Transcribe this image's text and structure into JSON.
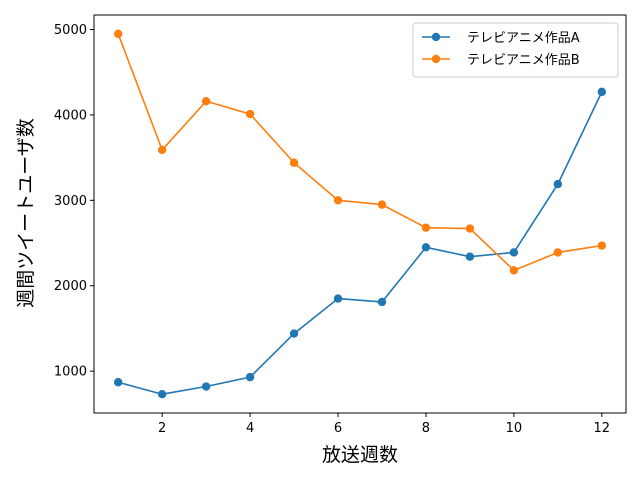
{
  "chart_data": {
    "type": "line",
    "xlabel": "放送週数",
    "ylabel": "週間ツイートユーザ数",
    "x": [
      1,
      2,
      3,
      4,
      5,
      6,
      7,
      8,
      9,
      10,
      11,
      12
    ],
    "xticks": [
      2,
      4,
      6,
      8,
      10,
      12
    ],
    "yticks": [
      1000,
      2000,
      3000,
      4000,
      5000
    ],
    "xlim": [
      0.45,
      12.55
    ],
    "ylim": [
      510,
      5170
    ],
    "grid": false,
    "legend_position": "top-right",
    "series": [
      {
        "name": "テレビアニメ作品A",
        "color": "#1f77b4",
        "values": [
          870,
          730,
          820,
          930,
          1440,
          1850,
          1810,
          2450,
          2340,
          2390,
          3190,
          4270
        ]
      },
      {
        "name": "テレビアニメ作品B",
        "color": "#ff7f0e",
        "values": [
          4950,
          3590,
          4160,
          4010,
          3440,
          3000,
          2950,
          2680,
          2670,
          2180,
          2390,
          2470
        ]
      }
    ]
  }
}
